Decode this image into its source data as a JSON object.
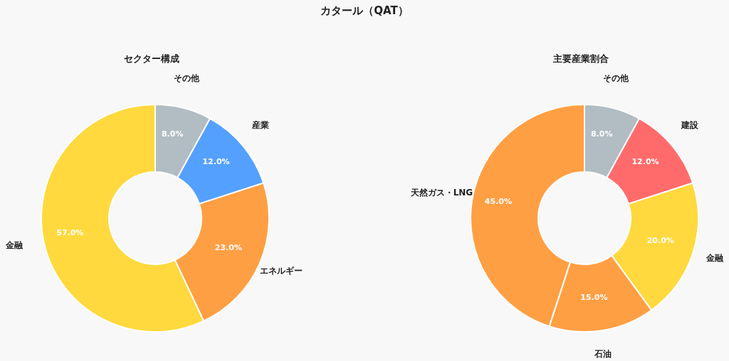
{
  "chart_data": [
    {
      "type": "donut",
      "title": "カタール（QAT）",
      "subtitle": "セクター構成",
      "categories": [
        "その他",
        "産業",
        "エネルギー",
        "金融"
      ],
      "values": [
        8,
        12,
        23,
        57
      ],
      "colors": [
        "#b2bcc3",
        "#54a0ff",
        "#ff9f43",
        "#ffd93d"
      ],
      "value_labels": [
        "8.0%",
        "12.0%",
        "23.0%",
        "57.0%"
      ]
    },
    {
      "type": "donut",
      "subtitle": "主要産業割合",
      "categories": [
        "その他",
        "建設",
        "金融",
        "石油",
        "天然ガス・LNG"
      ],
      "values": [
        8,
        12,
        20,
        15,
        45
      ],
      "colors": [
        "#b2bcc3",
        "#ff6b6b",
        "#ffd93d",
        "#ff9f43",
        "#ff9f43"
      ],
      "value_labels": [
        "8.0%",
        "12.0%",
        "20.0%",
        "15.0%",
        "45.0%"
      ]
    }
  ]
}
